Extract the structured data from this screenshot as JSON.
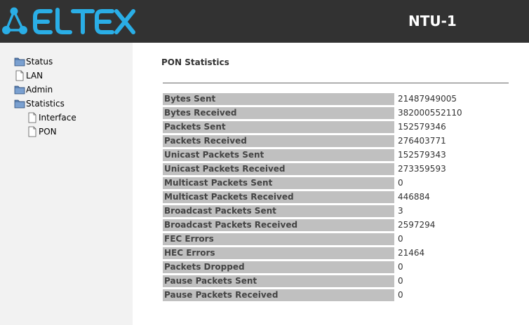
{
  "header": {
    "logo_text": "ELTEX",
    "model": "NTU-1"
  },
  "sidebar": {
    "items": [
      {
        "label": "Status",
        "icon": "folder-icon"
      },
      {
        "label": "LAN",
        "icon": "document-icon"
      },
      {
        "label": "Admin",
        "icon": "folder-icon"
      },
      {
        "label": "Statistics",
        "icon": "folder-open-icon"
      },
      {
        "label": "Interface",
        "icon": "document-icon"
      },
      {
        "label": "PON",
        "icon": "document-icon"
      }
    ]
  },
  "main": {
    "title": "PON Statistics",
    "rows": [
      {
        "label": "Bytes Sent",
        "value": "21487949005"
      },
      {
        "label": "Bytes Received",
        "value": "382000552110"
      },
      {
        "label": "Packets Sent",
        "value": "152579346"
      },
      {
        "label": "Packets Received",
        "value": "276403771"
      },
      {
        "label": "Unicast Packets Sent",
        "value": "152579343"
      },
      {
        "label": "Unicast Packets Received",
        "value": "273359593"
      },
      {
        "label": "Multicast Packets Sent",
        "value": "0"
      },
      {
        "label": "Multicast Packets Received",
        "value": "446884"
      },
      {
        "label": "Broadcast Packets Sent",
        "value": "3"
      },
      {
        "label": "Broadcast Packets Received",
        "value": "2597294"
      },
      {
        "label": "FEC Errors",
        "value": "0"
      },
      {
        "label": "HEC Errors",
        "value": "21464"
      },
      {
        "label": "Packets Dropped",
        "value": "0"
      },
      {
        "label": "Pause Packets Sent",
        "value": "0"
      },
      {
        "label": "Pause Packets Received",
        "value": "0"
      }
    ]
  },
  "colors": {
    "header_bg": "#323232",
    "logo_accent": "#2aaee6",
    "sidebar_bg": "#f2f2f2",
    "label_bg": "#c0c0c0"
  }
}
